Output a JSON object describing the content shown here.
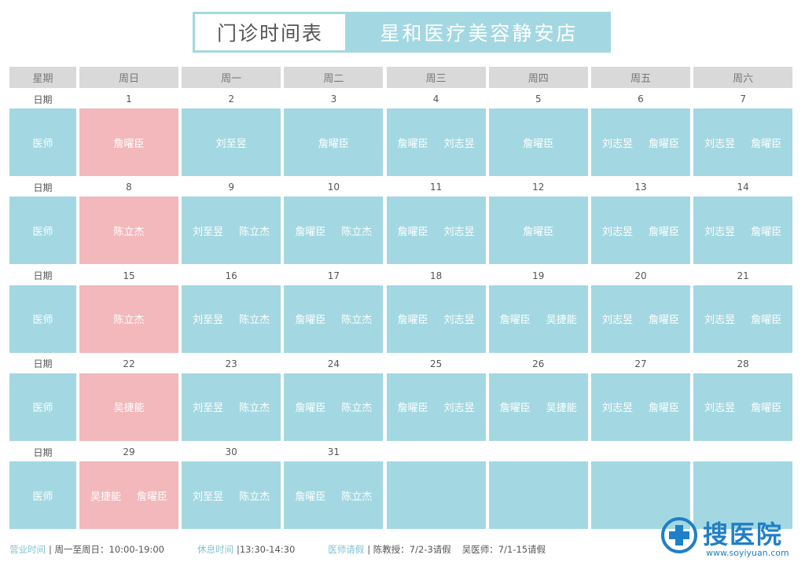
{
  "header": {
    "title": "门诊时间表",
    "store": "星和医疗美容静安店"
  },
  "table": {
    "columns": [
      "星期",
      "周日",
      "周一",
      "周二",
      "周三",
      "周四",
      "周五",
      "周六"
    ],
    "date_label": "日期",
    "doctor_label": "医师",
    "weeks": [
      {
        "dates": [
          1,
          2,
          3,
          4,
          5,
          6,
          7
        ],
        "doctors": [
          [
            "詹曜臣"
          ],
          [
            "刘至昱"
          ],
          [
            "詹曜臣"
          ],
          [
            "詹曜臣",
            "刘志昱"
          ],
          [
            "詹曜臣"
          ],
          [
            "刘志昱",
            "詹曜臣"
          ],
          [
            "刘志昱",
            "詹曜臣"
          ]
        ]
      },
      {
        "dates": [
          8,
          9,
          10,
          11,
          12,
          13,
          14
        ],
        "doctors": [
          [
            "陈立杰"
          ],
          [
            "刘至昱",
            "陈立杰"
          ],
          [
            "詹曜臣",
            "陈立杰"
          ],
          [
            "詹曜臣",
            "刘志昱"
          ],
          [
            "詹曜臣"
          ],
          [
            "刘志昱",
            "詹曜臣"
          ],
          [
            "刘志昱",
            "詹曜臣"
          ]
        ]
      },
      {
        "dates": [
          15,
          16,
          17,
          18,
          19,
          20,
          21
        ],
        "doctors": [
          [
            "陈立杰"
          ],
          [
            "刘至昱",
            "陈立杰"
          ],
          [
            "詹曜臣",
            "陈立杰"
          ],
          [
            "詹曜臣",
            "刘志昱"
          ],
          [
            "詹曜臣",
            "吴捷能"
          ],
          [
            "刘志昱",
            "詹曜臣"
          ],
          [
            "刘志昱",
            "詹曜臣"
          ]
        ]
      },
      {
        "dates": [
          22,
          23,
          24,
          25,
          26,
          27,
          28
        ],
        "doctors": [
          [
            "吴捷能"
          ],
          [
            "刘至昱",
            "陈立杰"
          ],
          [
            "詹曜臣",
            "陈立杰"
          ],
          [
            "詹曜臣",
            "刘志昱"
          ],
          [
            "詹曜臣",
            "吴捷能"
          ],
          [
            "刘志昱",
            "詹曜臣"
          ],
          [
            "刘志昱",
            "詹曜臣"
          ]
        ]
      },
      {
        "dates": [
          29,
          30,
          31
        ],
        "doctors": [
          [
            "吴捷能",
            "詹曜臣"
          ],
          [
            "刘至昱",
            "陈立杰"
          ],
          [
            "詹曜臣",
            "陈立杰"
          ]
        ]
      }
    ]
  },
  "footer": [
    {
      "label": "营业时间",
      "text": [
        "| 周一至周日：10:00-19:00"
      ]
    },
    {
      "label": "休息时间",
      "text": [
        "|13:30-14:30"
      ]
    },
    {
      "label": "医师请假",
      "text": [
        "| 陈教授：7/2-3请假",
        "吴医师：7/1-15请假"
      ]
    }
  ],
  "watermark": {
    "brand": "搜医院",
    "url": "www.soyiyuan.com"
  }
}
